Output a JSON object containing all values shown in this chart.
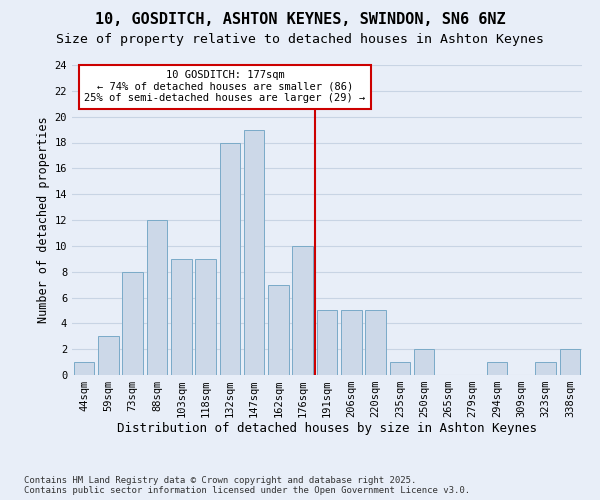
{
  "title1": "10, GOSDITCH, ASHTON KEYNES, SWINDON, SN6 6NZ",
  "title2": "Size of property relative to detached houses in Ashton Keynes",
  "xlabel": "Distribution of detached houses by size in Ashton Keynes",
  "ylabel": "Number of detached properties",
  "categories": [
    "44sqm",
    "59sqm",
    "73sqm",
    "88sqm",
    "103sqm",
    "118sqm",
    "132sqm",
    "147sqm",
    "162sqm",
    "176sqm",
    "191sqm",
    "206sqm",
    "220sqm",
    "235sqm",
    "250sqm",
    "265sqm",
    "279sqm",
    "294sqm",
    "309sqm",
    "323sqm",
    "338sqm"
  ],
  "values": [
    1,
    3,
    8,
    12,
    9,
    9,
    18,
    19,
    7,
    10,
    5,
    5,
    5,
    1,
    2,
    0,
    0,
    1,
    0,
    1,
    2
  ],
  "bar_color": "#ccd8e8",
  "bar_edge_color": "#7aaac8",
  "grid_color": "#c8d4e4",
  "bg_color": "#e8eef8",
  "redline_x": 9.5,
  "annotation_title": "10 GOSDITCH: 177sqm",
  "annotation_line1": "← 74% of detached houses are smaller (86)",
  "annotation_line2": "25% of semi-detached houses are larger (29) →",
  "annotation_box_color": "#ffffff",
  "annotation_edge_color": "#cc0000",
  "redline_color": "#cc0000",
  "ylim": [
    0,
    24
  ],
  "yticks": [
    0,
    2,
    4,
    6,
    8,
    10,
    12,
    14,
    16,
    18,
    20,
    22,
    24
  ],
  "footer": "Contains HM Land Registry data © Crown copyright and database right 2025.\nContains public sector information licensed under the Open Government Licence v3.0.",
  "title1_fontsize": 11,
  "title2_fontsize": 9.5,
  "xlabel_fontsize": 9,
  "ylabel_fontsize": 8.5,
  "tick_fontsize": 7.5,
  "annotation_fontsize": 7.5,
  "footer_fontsize": 6.5
}
